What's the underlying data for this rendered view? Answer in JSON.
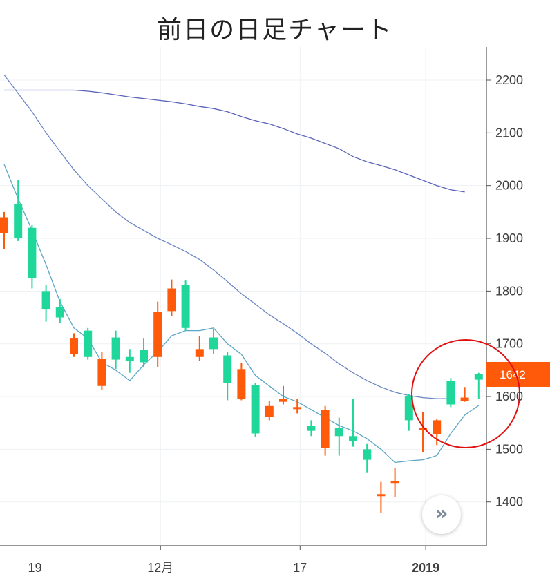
{
  "title": "前日の日足チャート",
  "scroll_button": {
    "icon": "double-chevron-right-icon",
    "glyph": "»"
  },
  "chart_data": {
    "type": "candlestick",
    "title": "前日の日足チャート",
    "ylim": [
      1300,
      2250
    ],
    "yticks": [
      1400,
      1500,
      1600,
      1700,
      1800,
      1900,
      2000,
      2100,
      2200
    ],
    "xtick_labels": [
      {
        "index": 2.5,
        "label": "19",
        "bold": false
      },
      {
        "index": 11.5,
        "label": "12月",
        "bold": false
      },
      {
        "index": 21.5,
        "label": "17",
        "bold": false
      },
      {
        "index": 30.5,
        "label": "2019",
        "bold": true
      }
    ],
    "grid": true,
    "last_price": 1642,
    "colors": {
      "up": "#1fd79a",
      "down": "#ff5a0a",
      "label_bg": "#ff5a0a",
      "ma_short": "#5aa6c6",
      "ma_mid": "#6a86c2",
      "ma_long": "#5a62b8",
      "highlight_circle": "#e01010"
    },
    "candles": [
      {
        "open": 1940,
        "close": 1910,
        "high": 1950,
        "low": 1880
      },
      {
        "open": 1900,
        "close": 1965,
        "high": 2010,
        "low": 1895
      },
      {
        "open": 1825,
        "close": 1920,
        "high": 1925,
        "low": 1805
      },
      {
        "open": 1765,
        "close": 1800,
        "high": 1812,
        "low": 1742
      },
      {
        "open": 1750,
        "close": 1770,
        "high": 1785,
        "low": 1740
      },
      {
        "open": 1710,
        "close": 1680,
        "high": 1720,
        "low": 1675
      },
      {
        "open": 1675,
        "close": 1725,
        "high": 1730,
        "low": 1670
      },
      {
        "open": 1672,
        "close": 1620,
        "high": 1685,
        "low": 1612
      },
      {
        "open": 1670,
        "close": 1712,
        "high": 1725,
        "low": 1652
      },
      {
        "open": 1668,
        "close": 1675,
        "high": 1690,
        "low": 1645
      },
      {
        "open": 1665,
        "close": 1688,
        "high": 1710,
        "low": 1655
      },
      {
        "open": 1760,
        "close": 1675,
        "high": 1780,
        "low": 1655
      },
      {
        "open": 1805,
        "close": 1762,
        "high": 1822,
        "low": 1752
      },
      {
        "open": 1730,
        "close": 1812,
        "high": 1820,
        "low": 1725
      },
      {
        "open": 1690,
        "close": 1675,
        "high": 1715,
        "low": 1668
      },
      {
        "open": 1690,
        "close": 1712,
        "high": 1728,
        "low": 1680
      },
      {
        "open": 1625,
        "close": 1678,
        "high": 1685,
        "low": 1593
      },
      {
        "open": 1652,
        "close": 1595,
        "high": 1663,
        "low": 1593
      },
      {
        "open": 1530,
        "close": 1622,
        "high": 1625,
        "low": 1523
      },
      {
        "open": 1582,
        "close": 1562,
        "high": 1592,
        "low": 1555
      },
      {
        "open": 1595,
        "close": 1590,
        "high": 1620,
        "low": 1585
      },
      {
        "open": 1580,
        "close": 1578,
        "high": 1595,
        "low": 1568
      },
      {
        "open": 1535,
        "close": 1545,
        "high": 1555,
        "low": 1525
      },
      {
        "open": 1575,
        "close": 1502,
        "high": 1582,
        "low": 1488
      },
      {
        "open": 1525,
        "close": 1540,
        "high": 1560,
        "low": 1488
      },
      {
        "open": 1515,
        "close": 1525,
        "high": 1595,
        "low": 1505
      },
      {
        "open": 1480,
        "close": 1500,
        "high": 1510,
        "low": 1455
      },
      {
        "open": 1415,
        "close": 1412,
        "high": 1438,
        "low": 1380
      },
      {
        "open": 1440,
        "close": 1436,
        "high": 1465,
        "low": 1410
      },
      {
        "open": 1555,
        "close": 1600,
        "high": 1605,
        "low": 1535
      },
      {
        "open": 1540,
        "close": 1538,
        "high": 1570,
        "low": 1495
      },
      {
        "open": 1555,
        "close": 1528,
        "high": 1558,
        "low": 1508
      },
      {
        "open": 1585,
        "close": 1630,
        "high": 1635,
        "low": 1580
      },
      {
        "open": 1598,
        "close": 1592,
        "high": 1618,
        "low": 1590
      },
      {
        "open": 1632,
        "close": 1642,
        "high": 1645,
        "low": 1595
      }
    ],
    "series": [
      {
        "values": [
          2040,
          1975,
          1915,
          1850,
          1780,
          1730,
          1710,
          1665,
          1650,
          1630,
          1660,
          1685,
          1715,
          1725,
          1725,
          1730,
          1700,
          1680,
          1640,
          1620,
          1600,
          1590,
          1575,
          1560,
          1545,
          1535,
          1520,
          1500,
          1475,
          1478,
          1480,
          1488,
          1530,
          1565,
          1583
        ]
      },
      {
        "values": [
          2210,
          2175,
          2140,
          2100,
          2065,
          2030,
          2000,
          1975,
          1950,
          1930,
          1915,
          1900,
          1888,
          1875,
          1860,
          1840,
          1818,
          1795,
          1775,
          1755,
          1738,
          1720,
          1700,
          1682,
          1662,
          1645,
          1630,
          1618,
          1608,
          1602,
          1598,
          1596,
          1596,
          null,
          null
        ]
      },
      {
        "values": [
          2181,
          2181,
          2181,
          2181,
          2181,
          2181,
          2179,
          2176,
          2172,
          2168,
          2165,
          2162,
          2159,
          2155,
          2150,
          2146,
          2140,
          2131,
          2123,
          2117,
          2108,
          2098,
          2090,
          2080,
          2070,
          2055,
          2045,
          2038,
          2030,
          2020,
          2010,
          2000,
          1992,
          1988,
          null
        ]
      }
    ]
  }
}
